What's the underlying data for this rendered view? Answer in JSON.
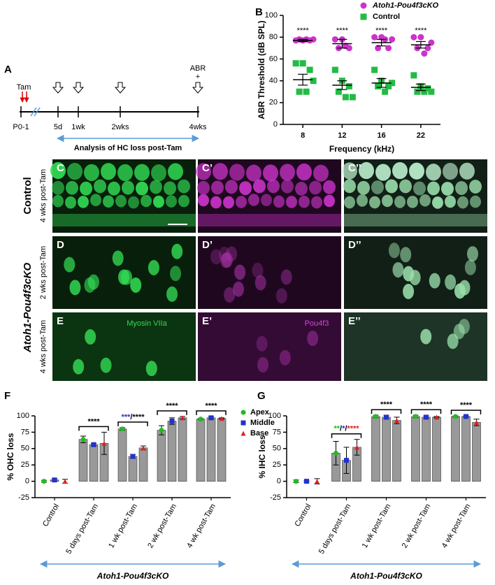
{
  "timeline": {
    "panel_label": "A",
    "tam": "Tam",
    "points": [
      "P0-1",
      "5d",
      "1wk",
      "2wks",
      "4wks"
    ],
    "abr": "ABR",
    "plus": "+",
    "analysis": "Analysis of HC loss post-Tam"
  },
  "images": {
    "panel_labels": [
      [
        "C",
        "C’",
        "C’’"
      ],
      [
        "D",
        "D’",
        "D’’"
      ],
      [
        "E",
        "E’",
        "E’’"
      ]
    ],
    "row_groups": [
      {
        "label": "Control",
        "rows": [
          "4 wks post-Tam"
        ]
      },
      {
        "label": "Atoh1-Pou4f3cKO",
        "rows": [
          "2 wks post-Tam",
          "4 wks post-Tam"
        ]
      }
    ],
    "stains": [
      "Myosin VIIa",
      "Pou4f3"
    ]
  },
  "chart_data": [
    {
      "type": "scatter",
      "panel_label": "B",
      "categories": [
        "8",
        "12",
        "16",
        "22"
      ],
      "xlabel": "Frequency (kHz)",
      "ylabel": "ABR Threshold (dB SPL)",
      "ylim": [
        0,
        100
      ],
      "yticks": [
        0,
        20,
        40,
        60,
        80,
        100
      ],
      "legend": "upper right",
      "annotations": [
        "****",
        "****",
        "****",
        "****"
      ],
      "series": [
        {
          "name": "Atoh1-Pou4f3cKO",
          "color": "#cc33cc",
          "marker": "circle",
          "values": [
            77,
            74,
            75,
            73
          ],
          "errors": [
            1,
            4,
            3,
            3
          ],
          "points": [
            [
              77,
              77,
              77,
              78,
              78,
              78
            ],
            [
              78,
              78,
              70,
              70,
              72
            ],
            [
              80,
              80,
              70,
              70,
              78,
              78
            ],
            [
              80,
              80,
              70,
              70,
              65,
              75
            ]
          ]
        },
        {
          "name": "Control",
          "color": "#22bb44",
          "marker": "square",
          "values": [
            41,
            36,
            38,
            34
          ],
          "errors": [
            5,
            4,
            4,
            3
          ],
          "points": [
            [
              56,
              56,
              50,
              30,
              30,
              40
            ],
            [
              50,
              40,
              35,
              30,
              25,
              25
            ],
            [
              50,
              40,
              35,
              35,
              30,
              38
            ],
            [
              45,
              35,
              33,
              30,
              30,
              30
            ]
          ]
        }
      ]
    },
    {
      "type": "bar",
      "panel_label": "F",
      "categories": [
        "Control",
        "5 days post-Tam",
        "1 wk post-Tam",
        "2 wk post-Tam",
        "4 wk post-Tam"
      ],
      "ylabel": "% OHC loss",
      "ylim": [
        -25,
        100
      ],
      "yticks": [
        -25,
        0,
        25,
        50,
        75,
        100
      ],
      "bar_color": "#999999",
      "legend": "right",
      "group_label": "Atoh1-Pou4f3cKO",
      "annotations": [
        null,
        [
          {
            "text": "****",
            "color": "#000000"
          }
        ],
        [
          {
            "text": "***",
            "color": "#2233cc"
          },
          {
            "text": "/****",
            "color": "#000000"
          }
        ],
        [
          {
            "text": "****",
            "color": "#000000"
          }
        ],
        [
          {
            "text": "****",
            "color": "#000000"
          }
        ]
      ],
      "series": [
        {
          "name": "Apex",
          "color": "#22bb22",
          "marker": "circle",
          "values": [
            0,
            64,
            80,
            78,
            95
          ],
          "errors": [
            1.5,
            5,
            2,
            7,
            1
          ]
        },
        {
          "name": "Middle",
          "color": "#2233cc",
          "marker": "square",
          "values": [
            2,
            56,
            38,
            92,
            97
          ],
          "errors": [
            2,
            2,
            3,
            5,
            2
          ]
        },
        {
          "name": "Base",
          "color": "#dd2222",
          "marker": "triangle",
          "values": [
            0,
            58,
            51,
            97,
            96
          ],
          "errors": [
            3,
            17,
            3,
            2,
            1
          ]
        }
      ]
    },
    {
      "type": "bar",
      "panel_label": "G",
      "categories": [
        "Control",
        "5 days post-Tam",
        "1 wk post-Tam",
        "2 wk post-Tam",
        "4 wk post-Tam"
      ],
      "ylabel": "% IHC loss",
      "ylim": [
        -25,
        100
      ],
      "yticks": [
        -25,
        0,
        25,
        50,
        75,
        100
      ],
      "bar_color": "#999999",
      "group_label": "Atoh1-Pou4f3cKO",
      "annotations": [
        null,
        [
          {
            "text": "**",
            "color": "#22bb22"
          },
          {
            "text": "/",
            "color": "#000000"
          },
          {
            "text": "*",
            "color": "#2233cc"
          },
          {
            "text": "/",
            "color": "#000000"
          },
          {
            "text": "****",
            "color": "#dd2222"
          }
        ],
        [
          {
            "text": "****",
            "color": "#000000"
          }
        ],
        [
          {
            "text": "****",
            "color": "#000000"
          }
        ],
        [
          {
            "text": "****",
            "color": "#000000"
          }
        ]
      ],
      "series": [
        {
          "name": "Apex",
          "color": "#22bb22",
          "marker": "circle",
          "values": [
            0,
            43,
            99,
            99,
            99
          ],
          "errors": [
            2,
            18,
            2,
            2,
            1
          ]
        },
        {
          "name": "Middle",
          "color": "#2233cc",
          "marker": "square",
          "values": [
            0,
            32,
            98,
            98,
            99
          ],
          "errors": [
            1,
            20,
            3,
            2,
            1
          ]
        },
        {
          "name": "Base",
          "color": "#dd2222",
          "marker": "triangle",
          "values": [
            0,
            52,
            93,
            98,
            90
          ],
          "errors": [
            4,
            12,
            5,
            1,
            5
          ]
        }
      ]
    }
  ]
}
